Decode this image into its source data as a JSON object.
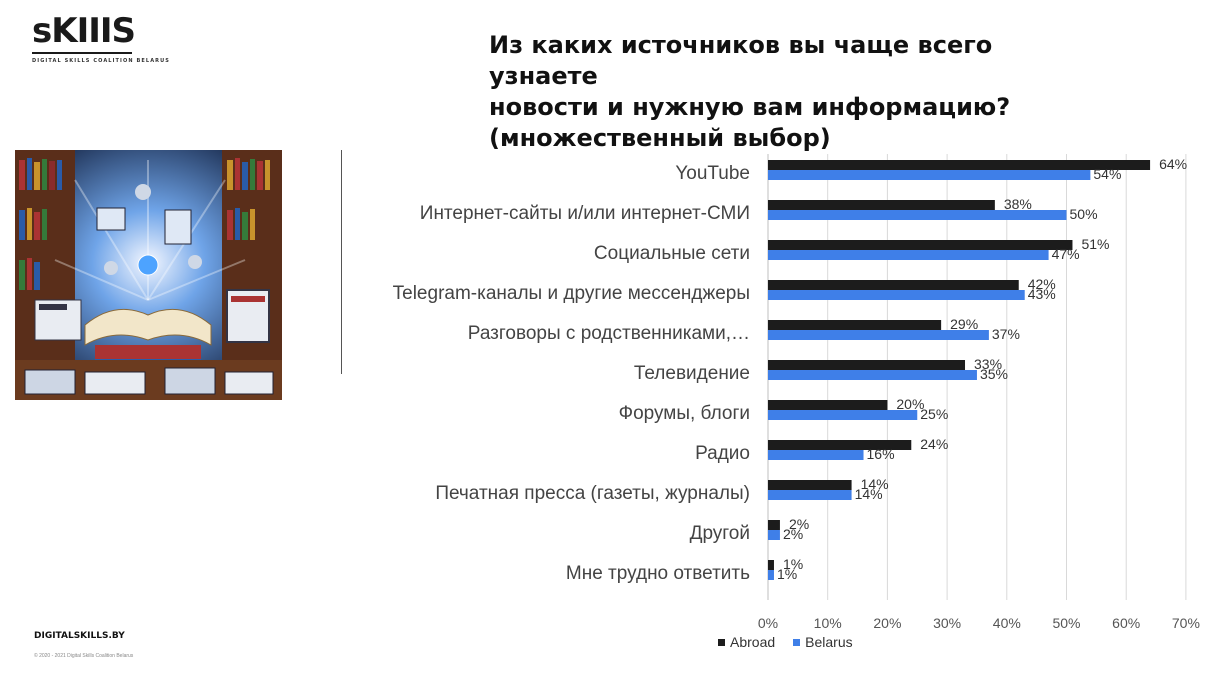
{
  "logo": {
    "mark": "sKIIIS",
    "subtitle": "DIGITAL SKILLS COALITION BELARUS"
  },
  "title": {
    "line1": "Из каких источников вы чаще всего узнаете",
    "line2": "новости и нужную вам информацию?",
    "line3": "(множественный выбор)"
  },
  "footer": {
    "site": "DIGITALSKILLS.BY",
    "copyright": "© 2020 - 2021 Digital Skills Coalition Belarus"
  },
  "colors": {
    "abroad": "#1c1c1c",
    "belarus": "#3f7fe8",
    "grid": "#d9d9d9",
    "axis_text": "#555555"
  },
  "chart_data": {
    "type": "bar",
    "orientation": "horizontal",
    "categories": [
      "YouTube",
      "Интернет-сайты и/или интернет-СМИ",
      "Социальные сети",
      "Telegram-каналы и другие мессенджеры",
      "Разговоры с родственниками,…",
      "Телевидение",
      "Форумы, блоги",
      "Радио",
      "Печатная пресса (газеты, журналы)",
      "Другой",
      "Мне трудно ответить"
    ],
    "series": [
      {
        "name": "Abroad",
        "values": [
          64,
          38,
          51,
          42,
          29,
          33,
          20,
          24,
          14,
          2,
          1
        ]
      },
      {
        "name": "Belarus",
        "values": [
          54,
          50,
          47,
          43,
          37,
          35,
          25,
          16,
          14,
          2,
          1
        ]
      }
    ],
    "value_labels": {
      "Abroad": [
        "64%",
        "38%",
        "51%",
        "42%",
        "29%",
        "33%",
        "20%",
        "24%",
        "14%",
        "2%",
        "1%"
      ],
      "Belarus": [
        "54%",
        "50%",
        "47%",
        "43%",
        "37%",
        "35%",
        "25%",
        "16%",
        "14%",
        "2%",
        "1%"
      ]
    },
    "xlim": [
      0,
      70
    ],
    "ticks": [
      0,
      10,
      20,
      30,
      40,
      50,
      60,
      70
    ],
    "tick_labels": [
      "0%",
      "10%",
      "20%",
      "30%",
      "40%",
      "50%",
      "60%",
      "70%"
    ],
    "grid": true,
    "legend": {
      "position": "bottom",
      "entries": [
        "Abroad",
        "Belarus"
      ]
    }
  }
}
